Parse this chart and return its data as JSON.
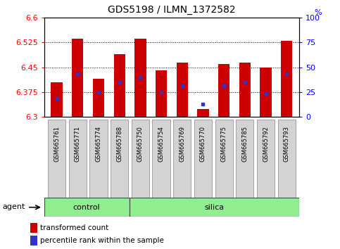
{
  "title": "GDS5198 / ILMN_1372582",
  "samples": [
    "GSM665761",
    "GSM665771",
    "GSM665774",
    "GSM665788",
    "GSM665750",
    "GSM665754",
    "GSM665769",
    "GSM665770",
    "GSM665775",
    "GSM665785",
    "GSM665792",
    "GSM665793"
  ],
  "groups": [
    "control",
    "control",
    "control",
    "control",
    "silica",
    "silica",
    "silica",
    "silica",
    "silica",
    "silica",
    "silica",
    "silica"
  ],
  "bar_values": [
    6.405,
    6.535,
    6.415,
    6.49,
    6.535,
    6.44,
    6.465,
    6.325,
    6.46,
    6.465,
    6.45,
    6.53
  ],
  "blue_dot_values": [
    6.355,
    6.43,
    6.375,
    6.405,
    6.42,
    6.375,
    6.395,
    6.34,
    6.395,
    6.405,
    6.37,
    6.43
  ],
  "y_min": 6.3,
  "y_max": 6.6,
  "y_ticks_left": [
    6.3,
    6.375,
    6.45,
    6.525,
    6.6
  ],
  "y_ticks_right": [
    0,
    25,
    50,
    75,
    100
  ],
  "right_axis_label": "%",
  "bar_color": "#cc0000",
  "dot_color": "#3333cc",
  "control_color": "#90ee90",
  "silica_color": "#90ee90",
  "agent_label": "agent",
  "legend_bar": "transformed count",
  "legend_dot": "percentile rank within the sample",
  "bar_width": 0.55,
  "fig_width": 4.83,
  "fig_height": 3.54,
  "dpi": 100
}
